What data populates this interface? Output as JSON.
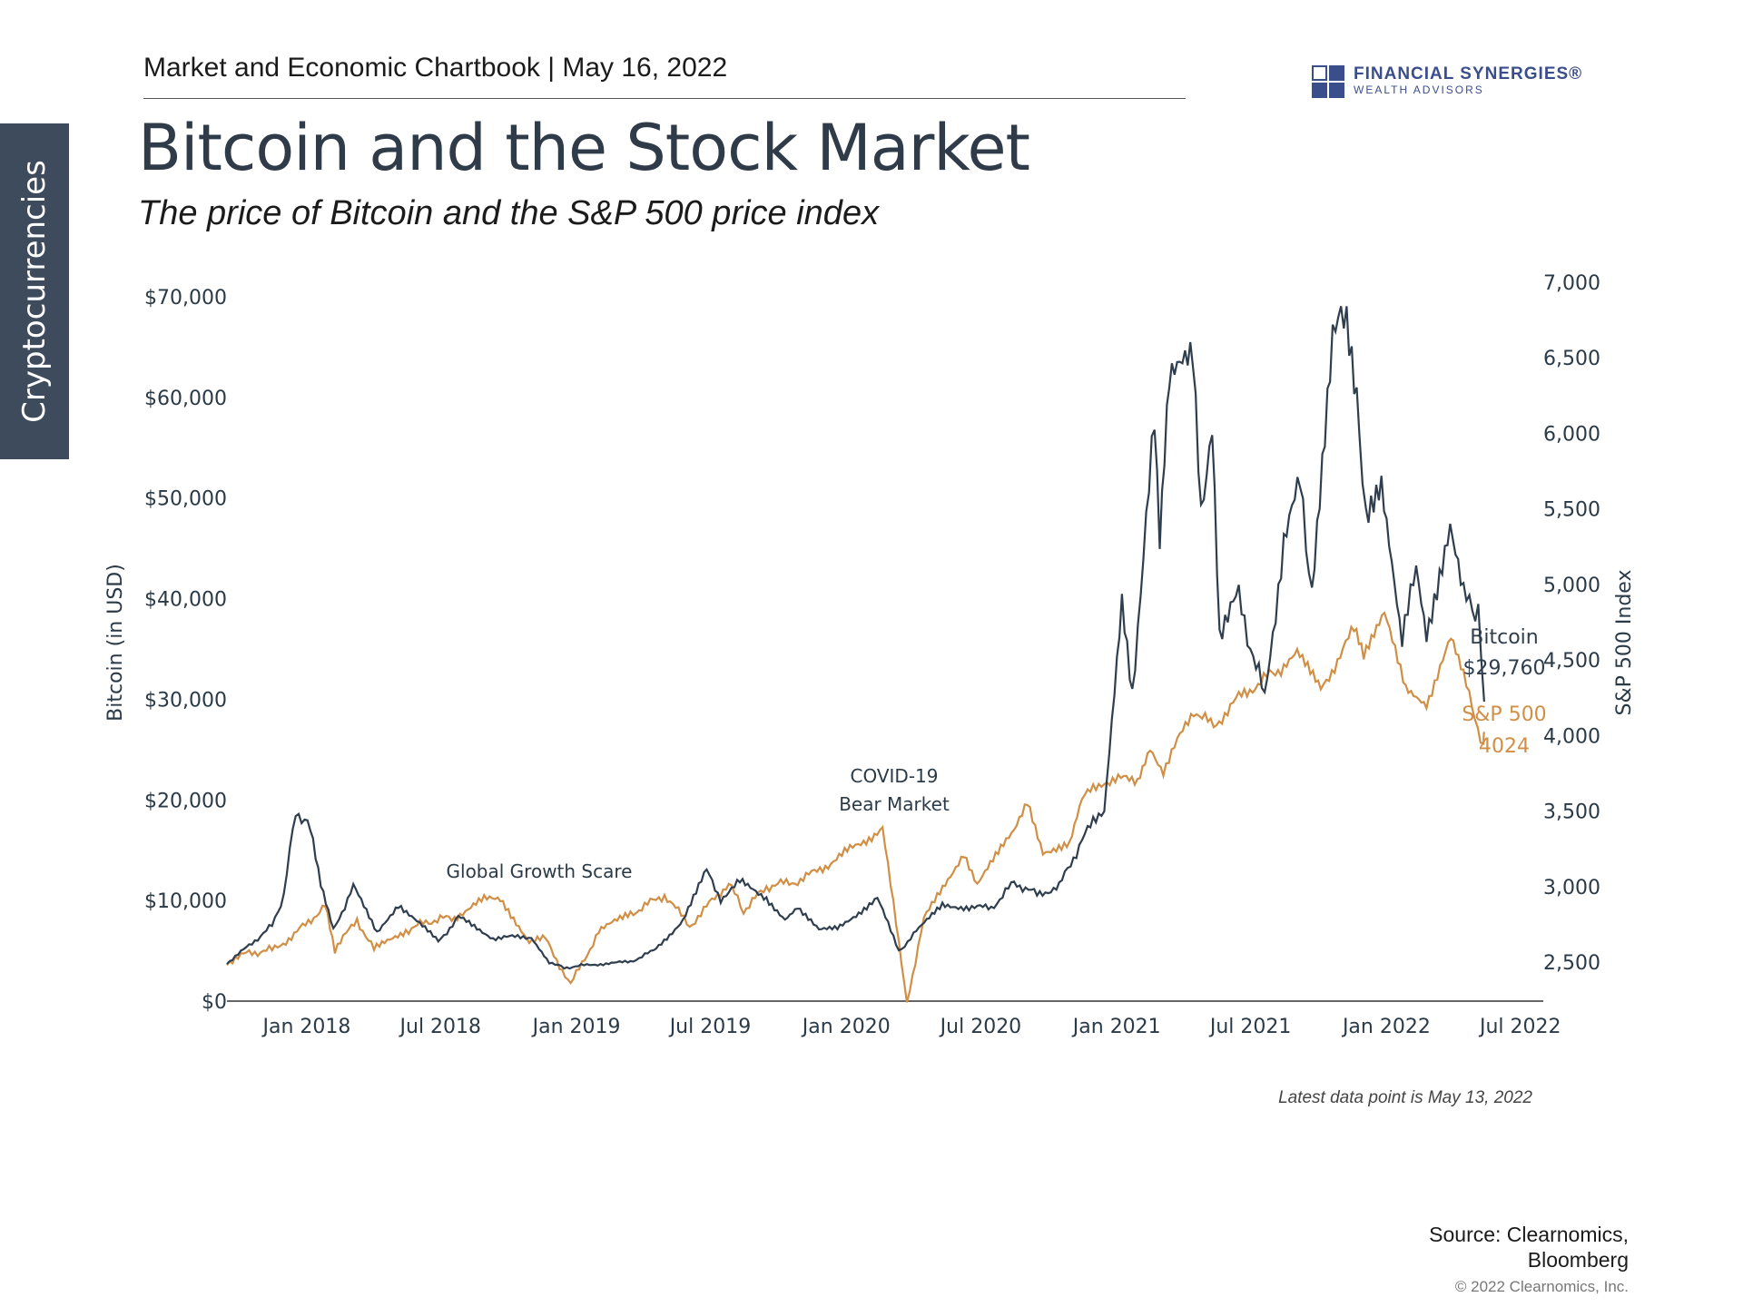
{
  "side_tab": "Cryptocurrencies",
  "header": "Market and Economic Chartbook | May 16, 2022",
  "logo": {
    "line1": "FINANCIAL SYNERGIES®",
    "line2": "WEALTH ADVISORS"
  },
  "title": "Bitcoin and the Stock Market",
  "subtitle": "The price of Bitcoin and the S&P 500 price index",
  "note": "Latest data point is May 13, 2022",
  "source": {
    "line1": "Source: Clearnomics,",
    "line2": "Bloomberg"
  },
  "copyright": "© 2022 Clearnomics, Inc.",
  "colors": {
    "bitcoin": "#2f3e4e",
    "sp500": "#d08f45",
    "text": "#2b3a47"
  },
  "chart_data": {
    "type": "line",
    "title": "Bitcoin and the Stock Market",
    "subtitle": "The price of Bitcoin and the S&P 500 price index",
    "x_ticks": [
      "Jan 2018",
      "Jul 2018",
      "Jan 2019",
      "Jul 2019",
      "Jan 2020",
      "Jul 2020",
      "Jan 2021",
      "Jul 2021",
      "Jan 2022",
      "Jul 2022"
    ],
    "x_range": [
      "2017-09-15",
      "2022-08-01"
    ],
    "y_left": {
      "label": "Bitcoin (in USD)",
      "range": [
        0,
        70000
      ],
      "ticks": [
        0,
        10000,
        20000,
        30000,
        40000,
        50000,
        60000,
        70000
      ],
      "tick_labels": [
        "$0",
        "$10,000",
        "$20,000",
        "$30,000",
        "$40,000",
        "$50,000",
        "$60,000",
        "$70,000"
      ]
    },
    "y_right": {
      "label": "S&P 500 Index",
      "range": [
        2200,
        7000
      ],
      "ticks": [
        2500,
        3000,
        3500,
        4000,
        4500,
        5000,
        5500,
        6000,
        6500,
        7000
      ],
      "tick_labels": [
        "2,500",
        "3,000",
        "3,500",
        "4,000",
        "4,500",
        "5,000",
        "5,500",
        "6,000",
        "6,500",
        "7,000"
      ]
    },
    "grid": false,
    "series": [
      {
        "name": "Bitcoin",
        "axis": "left",
        "points": [
          [
            "2017-09-15",
            3800
          ],
          [
            "2017-10-15",
            5500
          ],
          [
            "2017-11-15",
            7500
          ],
          [
            "2017-12-01",
            10500
          ],
          [
            "2017-12-17",
            19000
          ],
          [
            "2018-01-06",
            17000
          ],
          [
            "2018-01-20",
            11500
          ],
          [
            "2018-02-06",
            7000
          ],
          [
            "2018-03-05",
            11400
          ],
          [
            "2018-04-06",
            6700
          ],
          [
            "2018-05-05",
            9700
          ],
          [
            "2018-06-28",
            5900
          ],
          [
            "2018-07-25",
            8300
          ],
          [
            "2018-09-10",
            6300
          ],
          [
            "2018-11-01",
            6400
          ],
          [
            "2018-11-25",
            3900
          ],
          [
            "2018-12-15",
            3300
          ],
          [
            "2019-01-15",
            3600
          ],
          [
            "2019-03-15",
            3900
          ],
          [
            "2019-04-15",
            5000
          ],
          [
            "2019-05-25",
            8000
          ],
          [
            "2019-06-26",
            12900
          ],
          [
            "2019-07-15",
            10200
          ],
          [
            "2019-08-10",
            11800
          ],
          [
            "2019-09-15",
            10300
          ],
          [
            "2019-10-10",
            8200
          ],
          [
            "2019-10-27",
            9500
          ],
          [
            "2019-11-25",
            7000
          ],
          [
            "2019-12-20",
            7200
          ],
          [
            "2020-02-12",
            10300
          ],
          [
            "2020-03-12",
            4900
          ],
          [
            "2020-04-01",
            6600
          ],
          [
            "2020-05-10",
            9500
          ],
          [
            "2020-06-15",
            9400
          ],
          [
            "2020-07-15",
            9200
          ],
          [
            "2020-08-15",
            11800
          ],
          [
            "2020-09-15",
            10600
          ],
          [
            "2020-10-15",
            11400
          ],
          [
            "2020-11-15",
            16000
          ],
          [
            "2020-12-15",
            19300
          ],
          [
            "2021-01-08",
            40500
          ],
          [
            "2021-01-22",
            31000
          ],
          [
            "2021-02-21",
            57000
          ],
          [
            "2021-02-28",
            45000
          ],
          [
            "2021-03-13",
            61000
          ],
          [
            "2021-04-14",
            63500
          ],
          [
            "2021-04-25",
            49000
          ],
          [
            "2021-05-10",
            58000
          ],
          [
            "2021-05-20",
            37000
          ],
          [
            "2021-06-15",
            40000
          ],
          [
            "2021-07-20",
            30000
          ],
          [
            "2021-08-15",
            46000
          ],
          [
            "2021-09-06",
            51000
          ],
          [
            "2021-09-22",
            41000
          ],
          [
            "2021-10-20",
            66000
          ],
          [
            "2021-11-08",
            67500
          ],
          [
            "2021-11-25",
            57000
          ],
          [
            "2021-12-04",
            48000
          ],
          [
            "2021-12-25",
            50800
          ],
          [
            "2022-01-22",
            35000
          ],
          [
            "2022-02-10",
            44000
          ],
          [
            "2022-02-24",
            37000
          ],
          [
            "2022-03-28",
            47500
          ],
          [
            "2022-04-15",
            40000
          ],
          [
            "2022-05-05",
            39000
          ],
          [
            "2022-05-13",
            29760
          ]
        ]
      },
      {
        "name": "S&P 500",
        "axis": "right",
        "points": [
          [
            "2017-09-15",
            2500
          ],
          [
            "2017-10-15",
            2560
          ],
          [
            "2017-11-15",
            2580
          ],
          [
            "2017-12-15",
            2680
          ],
          [
            "2018-01-26",
            2872
          ],
          [
            "2018-02-08",
            2580
          ],
          [
            "2018-03-10",
            2780
          ],
          [
            "2018-04-02",
            2580
          ],
          [
            "2018-05-15",
            2710
          ],
          [
            "2018-06-15",
            2770
          ],
          [
            "2018-07-20",
            2800
          ],
          [
            "2018-08-29",
            2910
          ],
          [
            "2018-09-20",
            2930
          ],
          [
            "2018-10-29",
            2640
          ],
          [
            "2018-11-20",
            2650
          ],
          [
            "2018-12-24",
            2350
          ],
          [
            "2019-01-31",
            2700
          ],
          [
            "2019-03-15",
            2820
          ],
          [
            "2019-04-30",
            2945
          ],
          [
            "2019-06-03",
            2740
          ],
          [
            "2019-07-26",
            3025
          ],
          [
            "2019-08-15",
            2840
          ],
          [
            "2019-09-15",
            3000
          ],
          [
            "2019-10-31",
            3040
          ],
          [
            "2019-12-15",
            3170
          ],
          [
            "2020-02-19",
            3386
          ],
          [
            "2020-03-23",
            2237
          ],
          [
            "2020-04-15",
            2780
          ],
          [
            "2020-06-08",
            3230
          ],
          [
            "2020-06-26",
            3010
          ],
          [
            "2020-08-15",
            3370
          ],
          [
            "2020-09-02",
            3580
          ],
          [
            "2020-09-23",
            3240
          ],
          [
            "2020-10-29",
            3270
          ],
          [
            "2020-11-15",
            3580
          ],
          [
            "2020-12-15",
            3700
          ],
          [
            "2021-01-29",
            3715
          ],
          [
            "2021-02-15",
            3930
          ],
          [
            "2021-03-05",
            3770
          ],
          [
            "2021-04-15",
            4170
          ],
          [
            "2021-05-12",
            4060
          ],
          [
            "2021-06-15",
            4250
          ],
          [
            "2021-07-15",
            4360
          ],
          [
            "2021-08-15",
            4460
          ],
          [
            "2021-09-02",
            4540
          ],
          [
            "2021-10-04",
            4300
          ],
          [
            "2021-11-18",
            4700
          ],
          [
            "2021-12-01",
            4510
          ],
          [
            "2021-12-29",
            4790
          ],
          [
            "2022-01-27",
            4330
          ],
          [
            "2022-02-24",
            4220
          ],
          [
            "2022-03-29",
            4630
          ],
          [
            "2022-04-15",
            4390
          ],
          [
            "2022-05-12",
            3930
          ],
          [
            "2022-05-13",
            4024
          ]
        ]
      }
    ],
    "labels": {
      "bitcoin_name": "Bitcoin",
      "bitcoin_value": "$29,760",
      "sp_name": "S&P 500",
      "sp_value": "4024"
    },
    "annotations": [
      "Global Growth Scare",
      "COVID-19",
      "Bear Market"
    ]
  }
}
